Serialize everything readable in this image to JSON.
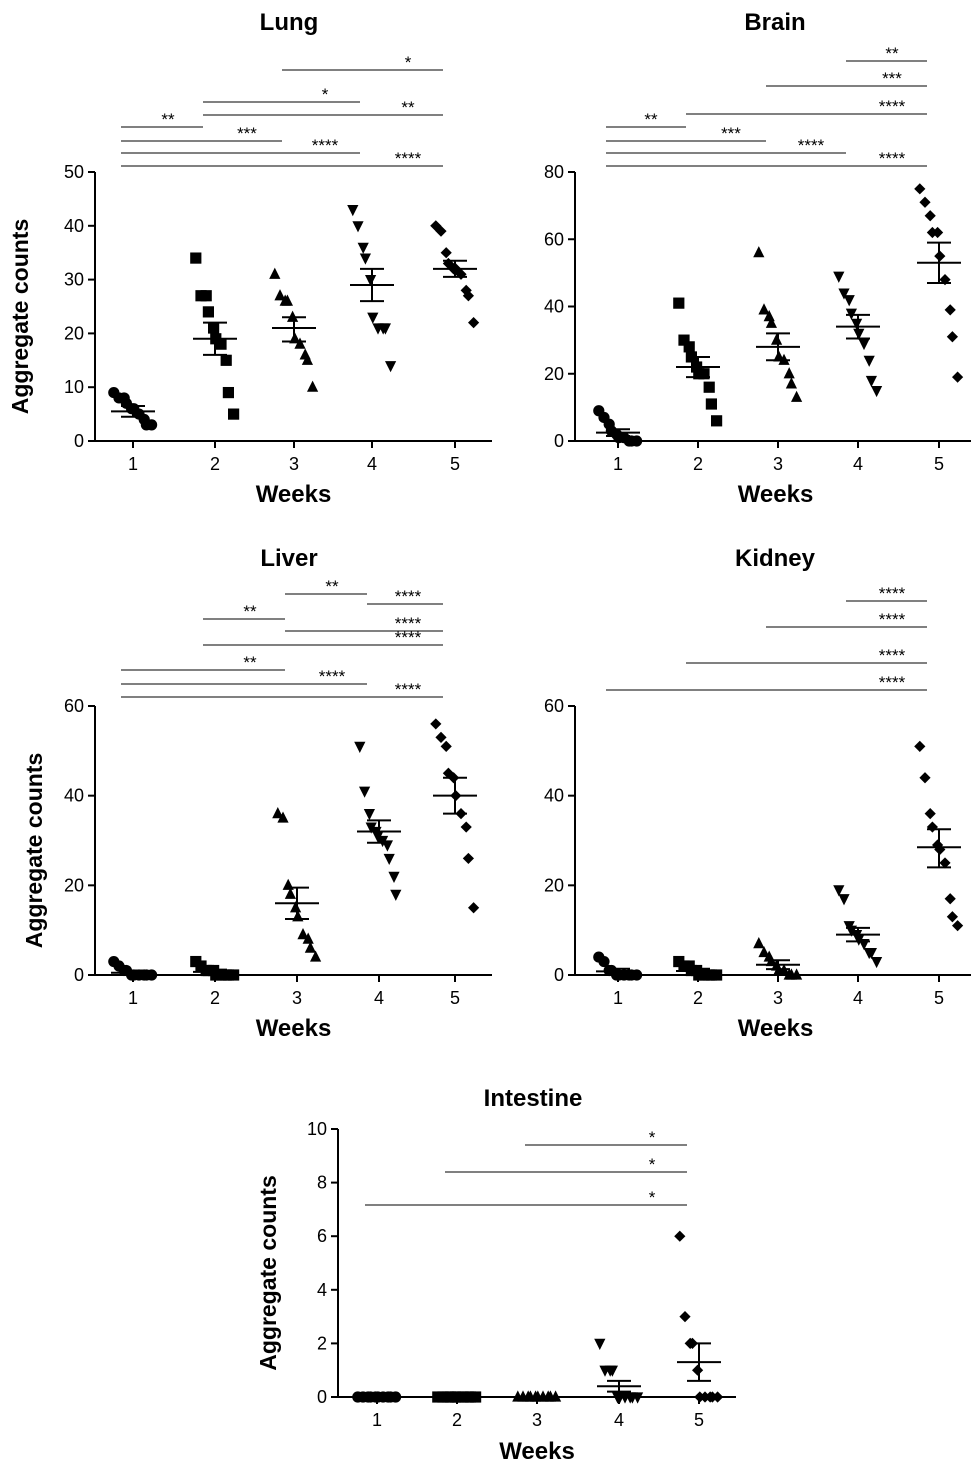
{
  "figure": {
    "colors": {
      "ink": "#000000",
      "background": "#ffffff"
    },
    "chart_data": [
      {
        "type": "scatter",
        "title": "Lung",
        "xlabel": "Weeks",
        "ylabel": "Aggregate counts",
        "categories": [
          "1",
          "2",
          "3",
          "4",
          "5"
        ],
        "ylim": [
          0,
          50
        ],
        "yticks": [
          0,
          10,
          20,
          30,
          40,
          50
        ],
        "grid": false,
        "marker_per_group": [
          "circle",
          "square",
          "triangle-up",
          "triangle-down",
          "diamond"
        ],
        "groups": [
          {
            "x": "1",
            "points": [
              9,
              8,
              8,
              7,
              6,
              6,
              5,
              4,
              3,
              3
            ],
            "mean": 5.5,
            "sem_low": 4.5,
            "sem_high": 6.5
          },
          {
            "x": "2",
            "points": [
              34,
              27,
              27,
              24,
              21,
              19,
              18,
              15,
              9,
              5
            ],
            "mean": 19,
            "sem_low": 16,
            "sem_high": 22
          },
          {
            "x": "3",
            "points": [
              31,
              27,
              26,
              26,
              23,
              19,
              18,
              16,
              15,
              10
            ],
            "mean": 21,
            "sem_low": 18.5,
            "sem_high": 23
          },
          {
            "x": "4",
            "points": [
              43,
              40,
              36,
              34,
              30,
              23,
              21,
              21,
              21,
              14
            ],
            "mean": 29,
            "sem_low": 26,
            "sem_high": 32
          },
          {
            "x": "5",
            "points": [
              40,
              39,
              35,
              33,
              32,
              32,
              31,
              28,
              27,
              22
            ],
            "mean": 32,
            "sem_low": 30.5,
            "sem_high": 33.5
          }
        ],
        "significance": [
          {
            "from": "3",
            "to": "5",
            "label": "*"
          },
          {
            "from": "2",
            "to": "4",
            "label": "*"
          },
          {
            "from": "2",
            "to": "5",
            "label": "**"
          },
          {
            "from": "1",
            "to": "2",
            "label": "**"
          },
          {
            "from": "1",
            "to": "3",
            "label": "***"
          },
          {
            "from": "1",
            "to": "4",
            "label": "****"
          },
          {
            "from": "1",
            "to": "5",
            "label": "****"
          }
        ]
      },
      {
        "type": "scatter",
        "title": "Brain",
        "xlabel": "Weeks",
        "ylabel": "",
        "categories": [
          "1",
          "2",
          "3",
          "4",
          "5"
        ],
        "ylim": [
          0,
          80
        ],
        "yticks": [
          0,
          20,
          40,
          60,
          80
        ],
        "grid": false,
        "marker_per_group": [
          "circle",
          "square",
          "triangle-up",
          "triangle-down",
          "diamond"
        ],
        "groups": [
          {
            "x": "1",
            "points": [
              9,
              7,
              5,
              3,
              2,
              1,
              1,
              0,
              0,
              0
            ],
            "mean": 2.5,
            "sem_low": 1.5,
            "sem_high": 3.5
          },
          {
            "x": "2",
            "points": [
              41,
              30,
              28,
              25,
              22,
              20,
              20,
              16,
              11,
              6
            ],
            "mean": 22,
            "sem_low": 19,
            "sem_high": 25
          },
          {
            "x": "3",
            "points": [
              56,
              39,
              37,
              35,
              30,
              25,
              24,
              20,
              17,
              13
            ],
            "mean": 28,
            "sem_low": 24,
            "sem_high": 32
          },
          {
            "x": "4",
            "points": [
              49,
              44,
              42,
              38,
              35,
              32,
              29,
              24,
              18,
              15
            ],
            "mean": 34,
            "sem_low": 30.5,
            "sem_high": 37.5
          },
          {
            "x": "5",
            "points": [
              75,
              71,
              67,
              62,
              62,
              55,
              48,
              39,
              31,
              19
            ],
            "mean": 53,
            "sem_low": 47,
            "sem_high": 59
          }
        ],
        "significance": [
          {
            "from": "4",
            "to": "5",
            "label": "**"
          },
          {
            "from": "3",
            "to": "5",
            "label": "***"
          },
          {
            "from": "2",
            "to": "5",
            "label": "****"
          },
          {
            "from": "1",
            "to": "2",
            "label": "**"
          },
          {
            "from": "1",
            "to": "3",
            "label": "***"
          },
          {
            "from": "1",
            "to": "4",
            "label": "****"
          },
          {
            "from": "1",
            "to": "5",
            "label": "****"
          }
        ]
      },
      {
        "type": "scatter",
        "title": "Liver",
        "xlabel": "Weeks",
        "ylabel": "Aggregate counts",
        "categories": [
          "1",
          "2",
          "3",
          "4",
          "5"
        ],
        "ylim": [
          0,
          60
        ],
        "yticks": [
          0,
          20,
          40,
          60
        ],
        "grid": false,
        "marker_per_group": [
          "circle",
          "square",
          "triangle-up",
          "triangle-down",
          "diamond"
        ],
        "groups": [
          {
            "x": "1",
            "points": [
              3,
              2,
              1,
              1,
              0,
              0,
              0,
              0,
              0,
              0
            ],
            "mean": 0.5,
            "sem_low": 0,
            "sem_high": 1
          },
          {
            "x": "2",
            "points": [
              3,
              2,
              1,
              1,
              1,
              0,
              0,
              0,
              0,
              0
            ],
            "mean": 0.7,
            "sem_low": 0.2,
            "sem_high": 1.2
          },
          {
            "x": "3",
            "points": [
              36,
              35,
              20,
              18,
              15,
              13,
              9,
              8,
              6,
              4
            ],
            "mean": 16,
            "sem_low": 12.5,
            "sem_high": 19.5
          },
          {
            "x": "4",
            "points": [
              51,
              41,
              36,
              33,
              32,
              31,
              30,
              29,
              26,
              22,
              18
            ],
            "mean": 32,
            "sem_low": 29.5,
            "sem_high": 34.5
          },
          {
            "x": "5",
            "points": [
              56,
              53,
              51,
              45,
              44,
              40,
              36,
              33,
              26,
              15
            ],
            "mean": 40,
            "sem_low": 36,
            "sem_high": 44
          }
        ],
        "significance": [
          {
            "from": "3",
            "to": "4",
            "label": "**"
          },
          {
            "from": "4",
            "to": "5",
            "label": "****"
          },
          {
            "from": "2",
            "to": "3",
            "label": "**"
          },
          {
            "from": "3",
            "to": "5",
            "label": "****"
          },
          {
            "from": "2",
            "to": "5",
            "label": "****"
          },
          {
            "from": "1",
            "to": "3",
            "label": "**"
          },
          {
            "from": "1",
            "to": "4",
            "label": "****"
          },
          {
            "from": "1",
            "to": "5",
            "label": "****"
          }
        ]
      },
      {
        "type": "scatter",
        "title": "Kidney",
        "xlabel": "Weeks",
        "ylabel": "",
        "categories": [
          "1",
          "2",
          "3",
          "4",
          "5"
        ],
        "ylim": [
          0,
          60
        ],
        "yticks": [
          0,
          20,
          40,
          60
        ],
        "grid": false,
        "marker_per_group": [
          "circle",
          "square",
          "triangle-up",
          "triangle-down",
          "diamond"
        ],
        "groups": [
          {
            "x": "1",
            "points": [
              4,
              3,
              1,
              1,
              0,
              0,
              0,
              0,
              0,
              0
            ],
            "mean": 0.8,
            "sem_low": 0.2,
            "sem_high": 1.4
          },
          {
            "x": "2",
            "points": [
              3,
              2,
              2,
              1,
              1,
              0,
              0,
              0,
              0,
              0
            ],
            "mean": 0.9,
            "sem_low": 0.4,
            "sem_high": 1.4
          },
          {
            "x": "3",
            "points": [
              7,
              5,
              4,
              3,
              2,
              1,
              1,
              0,
              0,
              0
            ],
            "mean": 2.3,
            "sem_low": 1.3,
            "sem_high": 3.3
          },
          {
            "x": "4",
            "points": [
              19,
              17,
              11,
              10,
              9,
              8,
              7,
              5,
              5,
              3
            ],
            "mean": 9,
            "sem_low": 7.5,
            "sem_high": 10.5
          },
          {
            "x": "5",
            "points": [
              51,
              44,
              36,
              33,
              29,
              28,
              25,
              17,
              13,
              11
            ],
            "mean": 28.5,
            "sem_low": 24,
            "sem_high": 32.5
          }
        ],
        "significance": [
          {
            "from": "4",
            "to": "5",
            "label": "****"
          },
          {
            "from": "3",
            "to": "5",
            "label": "****"
          },
          {
            "from": "2",
            "to": "5",
            "label": "****"
          },
          {
            "from": "1",
            "to": "5",
            "label": "****"
          }
        ]
      },
      {
        "type": "scatter",
        "title": "Intestine",
        "xlabel": "Weeks",
        "ylabel": "Aggregate counts",
        "categories": [
          "1",
          "2",
          "3",
          "4",
          "5"
        ],
        "ylim": [
          0,
          10
        ],
        "yticks": [
          0,
          2,
          4,
          6,
          8,
          10
        ],
        "grid": false,
        "marker_per_group": [
          "circle",
          "square",
          "triangle-up",
          "triangle-down",
          "diamond"
        ],
        "groups": [
          {
            "x": "1",
            "points": [
              0,
              0,
              0,
              0,
              0,
              0,
              0,
              0,
              0,
              0
            ],
            "mean": 0,
            "sem_low": 0,
            "sem_high": 0
          },
          {
            "x": "2",
            "points": [
              0,
              0,
              0,
              0,
              0,
              0,
              0,
              0,
              0,
              0
            ],
            "mean": 0,
            "sem_low": 0,
            "sem_high": 0
          },
          {
            "x": "3",
            "points": [
              0,
              0,
              0,
              0,
              0,
              0,
              0,
              0,
              0,
              0
            ],
            "mean": 0,
            "sem_low": 0,
            "sem_high": 0
          },
          {
            "x": "4",
            "points": [
              2,
              1,
              1,
              1,
              0,
              0,
              0,
              0,
              0,
              0
            ],
            "mean": 0.4,
            "sem_low": 0.2,
            "sem_high": 0.6
          },
          {
            "x": "5",
            "points": [
              6,
              3,
              2,
              2,
              1,
              0,
              0,
              0,
              0,
              0
            ],
            "mean": 1.3,
            "sem_low": 0.6,
            "sem_high": 2.0
          }
        ],
        "significance": [
          {
            "from": "3",
            "to": "5",
            "label": "*"
          },
          {
            "from": "2",
            "to": "5",
            "label": "*"
          },
          {
            "from": "1",
            "to": "5",
            "label": "*"
          }
        ]
      }
    ]
  }
}
